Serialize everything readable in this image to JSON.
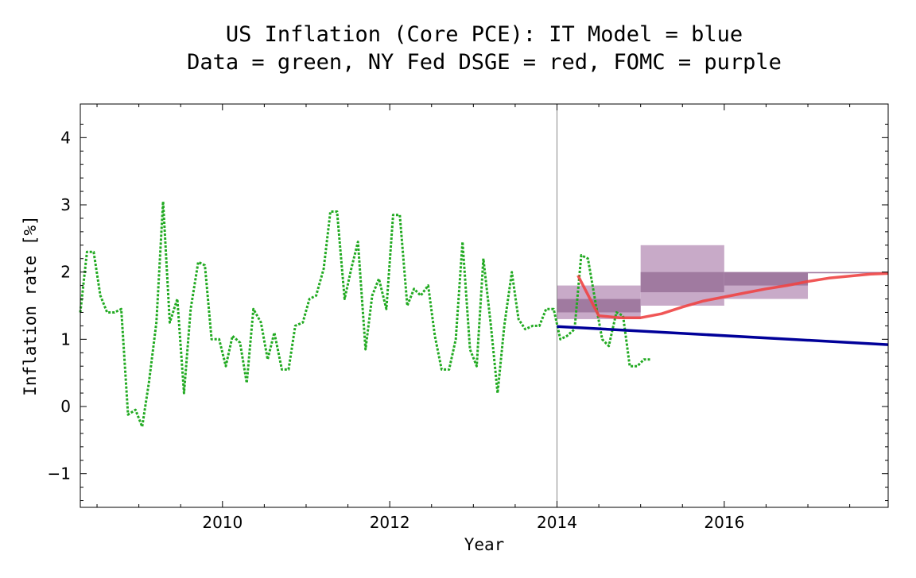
{
  "chart_data": {
    "type": "line",
    "title_line1": "US Inflation (Core PCE): IT Model = blue",
    "title_line2": "Data = green, NY Fed DSGE = red, FOMC = purple",
    "xlabel": "Year",
    "ylabel": "Inflation rate [%]",
    "xlim": [
      2008.3,
      2017.96
    ],
    "ylim": [
      -1.5,
      4.5
    ],
    "xticks": [
      2010,
      2012,
      2014,
      2016
    ],
    "yticks": [
      -1,
      0,
      1,
      2,
      3,
      4
    ],
    "grid": false,
    "reference_line_x": 2014.0,
    "colors": {
      "data": "#22aa22",
      "it_model": "#000099",
      "ny_fed": "#ee4444",
      "fomc_range": "#c8aac8",
      "fomc_central": "#a07aa0"
    },
    "series": [
      {
        "name": "Data",
        "style": "dotted",
        "x": [
          2008.3,
          2008.38,
          2008.46,
          2008.54,
          2008.62,
          2008.71,
          2008.79,
          2008.87,
          2008.96,
          2009.04,
          2009.12,
          2009.21,
          2009.29,
          2009.37,
          2009.46,
          2009.54,
          2009.62,
          2009.71,
          2009.79,
          2009.87,
          2009.96,
          2010.04,
          2010.12,
          2010.21,
          2010.29,
          2010.37,
          2010.46,
          2010.54,
          2010.62,
          2010.71,
          2010.79,
          2010.87,
          2010.96,
          2011.04,
          2011.12,
          2011.21,
          2011.29,
          2011.37,
          2011.46,
          2011.54,
          2011.62,
          2011.71,
          2011.79,
          2011.87,
          2011.96,
          2012.04,
          2012.12,
          2012.21,
          2012.29,
          2012.37,
          2012.46,
          2012.54,
          2012.62,
          2012.71,
          2012.79,
          2012.87,
          2012.96,
          2013.04,
          2013.12,
          2013.21,
          2013.29,
          2013.37,
          2013.46,
          2013.54,
          2013.62,
          2013.71,
          2013.79,
          2013.87,
          2013.96,
          2014.04,
          2014.12,
          2014.21,
          2014.29,
          2014.37,
          2014.46,
          2014.54,
          2014.62,
          2014.71,
          2014.79,
          2014.87,
          2014.96,
          2015.04,
          2015.12
        ],
        "y": [
          1.4,
          2.3,
          2.3,
          1.65,
          1.4,
          1.4,
          1.45,
          -0.12,
          -0.05,
          -0.3,
          0.35,
          1.25,
          3.05,
          1.25,
          1.6,
          0.2,
          1.45,
          2.15,
          2.1,
          1.0,
          1.0,
          0.6,
          1.05,
          0.95,
          0.35,
          1.45,
          1.25,
          0.7,
          1.1,
          0.55,
          0.55,
          1.2,
          1.25,
          1.6,
          1.65,
          2.05,
          2.9,
          2.9,
          1.6,
          2.05,
          2.45,
          0.85,
          1.65,
          1.9,
          1.45,
          2.85,
          2.85,
          1.5,
          1.75,
          1.65,
          1.8,
          1.05,
          0.55,
          0.55,
          1.0,
          2.45,
          0.85,
          0.6,
          2.2,
          1.2,
          0.2,
          1.2,
          2.0,
          1.3,
          1.15,
          1.2,
          1.2,
          1.45,
          1.45,
          1.0,
          1.05,
          1.15,
          2.25,
          2.2,
          1.55,
          1.0,
          0.9,
          1.4,
          1.35,
          0.6,
          0.6,
          0.7,
          0.7
        ]
      },
      {
        "name": "IT Model",
        "style": "solid",
        "x": [
          2014.0,
          2017.96
        ],
        "y": [
          1.19,
          0.92
        ]
      },
      {
        "name": "NY Fed DSGE",
        "style": "solid",
        "x": [
          2014.25,
          2014.5,
          2014.75,
          2015.0,
          2015.25,
          2015.5,
          2015.75,
          2016.0,
          2016.25,
          2016.5,
          2016.75,
          2017.0,
          2017.25,
          2017.5,
          2017.75,
          2017.96
        ],
        "y": [
          1.95,
          1.35,
          1.32,
          1.32,
          1.38,
          1.48,
          1.57,
          1.63,
          1.69,
          1.75,
          1.8,
          1.86,
          1.91,
          1.94,
          1.97,
          1.98
        ]
      }
    ],
    "fomc_ranges": [
      {
        "x_start": 2014.0,
        "x_end": 2015.0,
        "low": 1.3,
        "high": 1.8,
        "central_low": 1.4,
        "central_high": 1.6
      },
      {
        "x_start": 2015.0,
        "x_end": 2016.0,
        "low": 1.5,
        "high": 2.4,
        "central_low": 1.7,
        "central_high": 2.0
      },
      {
        "x_start": 2016.0,
        "x_end": 2017.0,
        "low": 1.6,
        "high": 2.0,
        "central_low": 1.8,
        "central_high": 2.0
      },
      {
        "x_start": 2017.0,
        "x_end": 2017.96,
        "low": 2.0,
        "high": 2.0,
        "central_low": 2.0,
        "central_high": 2.0
      }
    ]
  }
}
